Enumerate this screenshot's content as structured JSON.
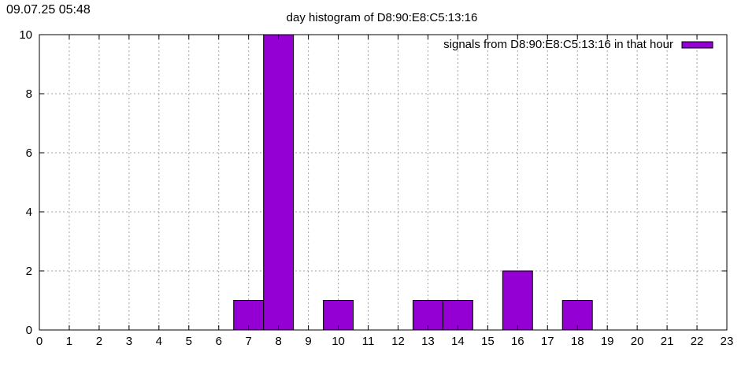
{
  "timestamp": "09.07.25 05:48",
  "chart_data": {
    "type": "bar",
    "title": "day histogram of D8:90:E8:C5:13:16",
    "xlabel": "",
    "ylabel": "",
    "xlim": [
      0,
      23
    ],
    "ylim": [
      0,
      10
    ],
    "x_ticks": [
      0,
      1,
      2,
      3,
      4,
      5,
      6,
      7,
      8,
      9,
      10,
      11,
      12,
      13,
      14,
      15,
      16,
      17,
      18,
      19,
      20,
      21,
      22,
      23
    ],
    "y_ticks": [
      0,
      2,
      4,
      6,
      8,
      10
    ],
    "grid": true,
    "legend_position": "top-right",
    "bar_color": "#9400d3",
    "series": [
      {
        "name": "signals from D8:90:E8:C5:13:16 in that hour",
        "x": [
          7,
          8,
          10,
          13,
          14,
          16,
          18
        ],
        "values": [
          1,
          10,
          1,
          1,
          1,
          2,
          1
        ]
      }
    ]
  }
}
